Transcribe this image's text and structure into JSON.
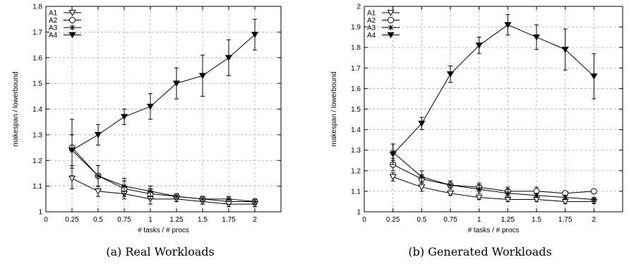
{
  "figure": {
    "captions": [
      "(a) Real Workloads",
      "(b) Generated Workloads"
    ]
  },
  "chart_data": [
    {
      "type": "line",
      "title": "",
      "xlabel": "# tasks / # procs",
      "ylabel": "makespan / lowerbound",
      "xlim": [
        0,
        2.25
      ],
      "ylim": [
        1,
        1.8
      ],
      "xticks": [
        0,
        0.25,
        0.5,
        0.75,
        1,
        1.25,
        1.5,
        1.75,
        2
      ],
      "xtick_labels": [
        "0",
        "0.25",
        "0.5",
        "0.75",
        "1",
        "1.25",
        "1.5",
        "1.75",
        "2"
      ],
      "yticks": [
        1,
        1.1,
        1.2,
        1.3,
        1.4,
        1.5,
        1.6,
        1.7,
        1.8
      ],
      "ytick_labels": [
        "1",
        "1.1",
        "1.2",
        "1.3",
        "1.4",
        "1.5",
        "1.6",
        "1.7",
        "1.8"
      ],
      "grid": true,
      "legend": "top-left",
      "x": [
        0.25,
        0.5,
        0.75,
        1,
        1.25,
        1.5,
        1.75,
        2
      ],
      "series": [
        {
          "name": "A1",
          "marker": "triangle-down-open",
          "values": [
            1.13,
            1.08,
            1.07,
            1.05,
            1.05,
            1.04,
            1.03,
            1.03
          ],
          "err": [
            0.04,
            0.02,
            0.02,
            0.02,
            0.01,
            0.01,
            0.01,
            0.01
          ]
        },
        {
          "name": "A2",
          "marker": "circle-open",
          "values": [
            1.25,
            1.14,
            1.09,
            1.07,
            1.06,
            1.05,
            1.04,
            1.04
          ],
          "err": [
            0.11,
            0.04,
            0.03,
            0.02,
            0.01,
            0.01,
            0.01,
            0.01
          ]
        },
        {
          "name": "A3",
          "marker": "asterisk",
          "values": [
            1.24,
            1.14,
            1.1,
            1.08,
            1.06,
            1.05,
            1.05,
            1.04
          ],
          "err": [
            0.06,
            0.04,
            0.03,
            0.02,
            0.01,
            0.01,
            0.01,
            0.01
          ]
        },
        {
          "name": "A4",
          "marker": "triangle-down-filled",
          "values": [
            1.24,
            1.3,
            1.37,
            1.41,
            1.5,
            1.53,
            1.6,
            1.69
          ],
          "err": [
            0.06,
            0.04,
            0.03,
            0.05,
            0.06,
            0.08,
            0.07,
            0.06
          ]
        }
      ]
    },
    {
      "type": "line",
      "title": "",
      "xlabel": "# tasks / # procs",
      "ylabel": "makespan / lowerbound",
      "xlim": [
        0,
        2.25
      ],
      "ylim": [
        1,
        2
      ],
      "xticks": [
        0,
        0.25,
        0.5,
        0.75,
        1,
        1.25,
        1.5,
        1.75,
        2
      ],
      "xtick_labels": [
        "0",
        "0.25",
        "0.5",
        "0.75",
        "1",
        "1.25",
        "1.5",
        "1.75",
        "2"
      ],
      "yticks": [
        1,
        1.1,
        1.2,
        1.3,
        1.4,
        1.5,
        1.6,
        1.7,
        1.8,
        1.9,
        2
      ],
      "ytick_labels": [
        "1",
        "1.1",
        "1.2",
        "1.3",
        "1.4",
        "1.5",
        "1.6",
        "1.7",
        "1.8",
        "1.9",
        "2"
      ],
      "grid": true,
      "legend": "top-left",
      "x": [
        0.25,
        0.5,
        0.75,
        1,
        1.25,
        1.5,
        1.75,
        2
      ],
      "series": [
        {
          "name": "A1",
          "marker": "triangle-down-open",
          "values": [
            1.17,
            1.12,
            1.09,
            1.07,
            1.06,
            1.06,
            1.05,
            1.05
          ],
          "err": [
            0.02,
            0.02,
            0.01,
            0.01,
            0.01,
            0.01,
            0.01,
            0.01
          ]
        },
        {
          "name": "A2",
          "marker": "circle-open",
          "values": [
            1.23,
            1.16,
            1.13,
            1.12,
            1.1,
            1.1,
            1.09,
            1.1
          ],
          "err": [
            0.03,
            0.02,
            0.02,
            0.02,
            0.02,
            0.02,
            0.01,
            0.01
          ]
        },
        {
          "name": "A3",
          "marker": "asterisk",
          "values": [
            1.29,
            1.17,
            1.13,
            1.11,
            1.09,
            1.08,
            1.07,
            1.06
          ],
          "err": [
            0.04,
            0.03,
            0.02,
            0.02,
            0.02,
            0.01,
            0.01,
            0.01
          ]
        },
        {
          "name": "A4",
          "marker": "triangle-down-filled",
          "values": [
            1.28,
            1.43,
            1.67,
            1.81,
            1.91,
            1.85,
            1.79,
            1.66
          ],
          "err": [
            0.05,
            0.03,
            0.04,
            0.04,
            0.05,
            0.06,
            0.1,
            0.11
          ]
        }
      ]
    }
  ]
}
